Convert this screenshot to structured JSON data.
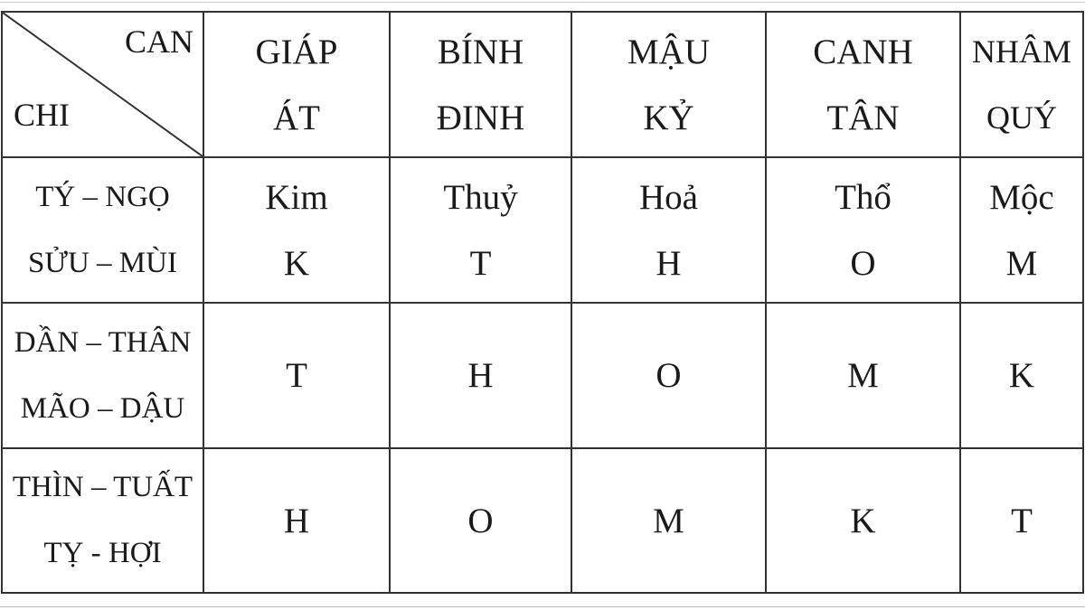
{
  "corner": {
    "top_right": "CAN",
    "bottom_left": "CHI"
  },
  "columns": [
    [
      "GIÁP",
      "ÁT"
    ],
    [
      "BÍNH",
      "ĐINH"
    ],
    [
      "MẬU",
      "KỶ"
    ],
    [
      "CANH",
      "TÂN"
    ],
    [
      "NHÂM",
      "QUÝ"
    ]
  ],
  "rows": [
    {
      "chi": [
        "TÝ – NGỌ",
        "SỬU – MÙI"
      ],
      "cells": [
        [
          "Kim",
          "K"
        ],
        [
          "Thuỷ",
          "T"
        ],
        [
          "Hoả",
          "H"
        ],
        [
          "Thổ",
          "O"
        ],
        [
          "Mộc",
          "M"
        ]
      ]
    },
    {
      "chi": [
        "DẦN – THÂN",
        "MÃO – DẬU"
      ],
      "cells": [
        [
          "T"
        ],
        [
          "H"
        ],
        [
          "O"
        ],
        [
          "M"
        ],
        [
          "K"
        ]
      ]
    },
    {
      "chi": [
        "THÌN – TUẤT",
        "TỴ - HỢI"
      ],
      "cells": [
        [
          "H"
        ],
        [
          "O"
        ],
        [
          "M"
        ],
        [
          "K"
        ],
        [
          "T"
        ]
      ]
    }
  ]
}
